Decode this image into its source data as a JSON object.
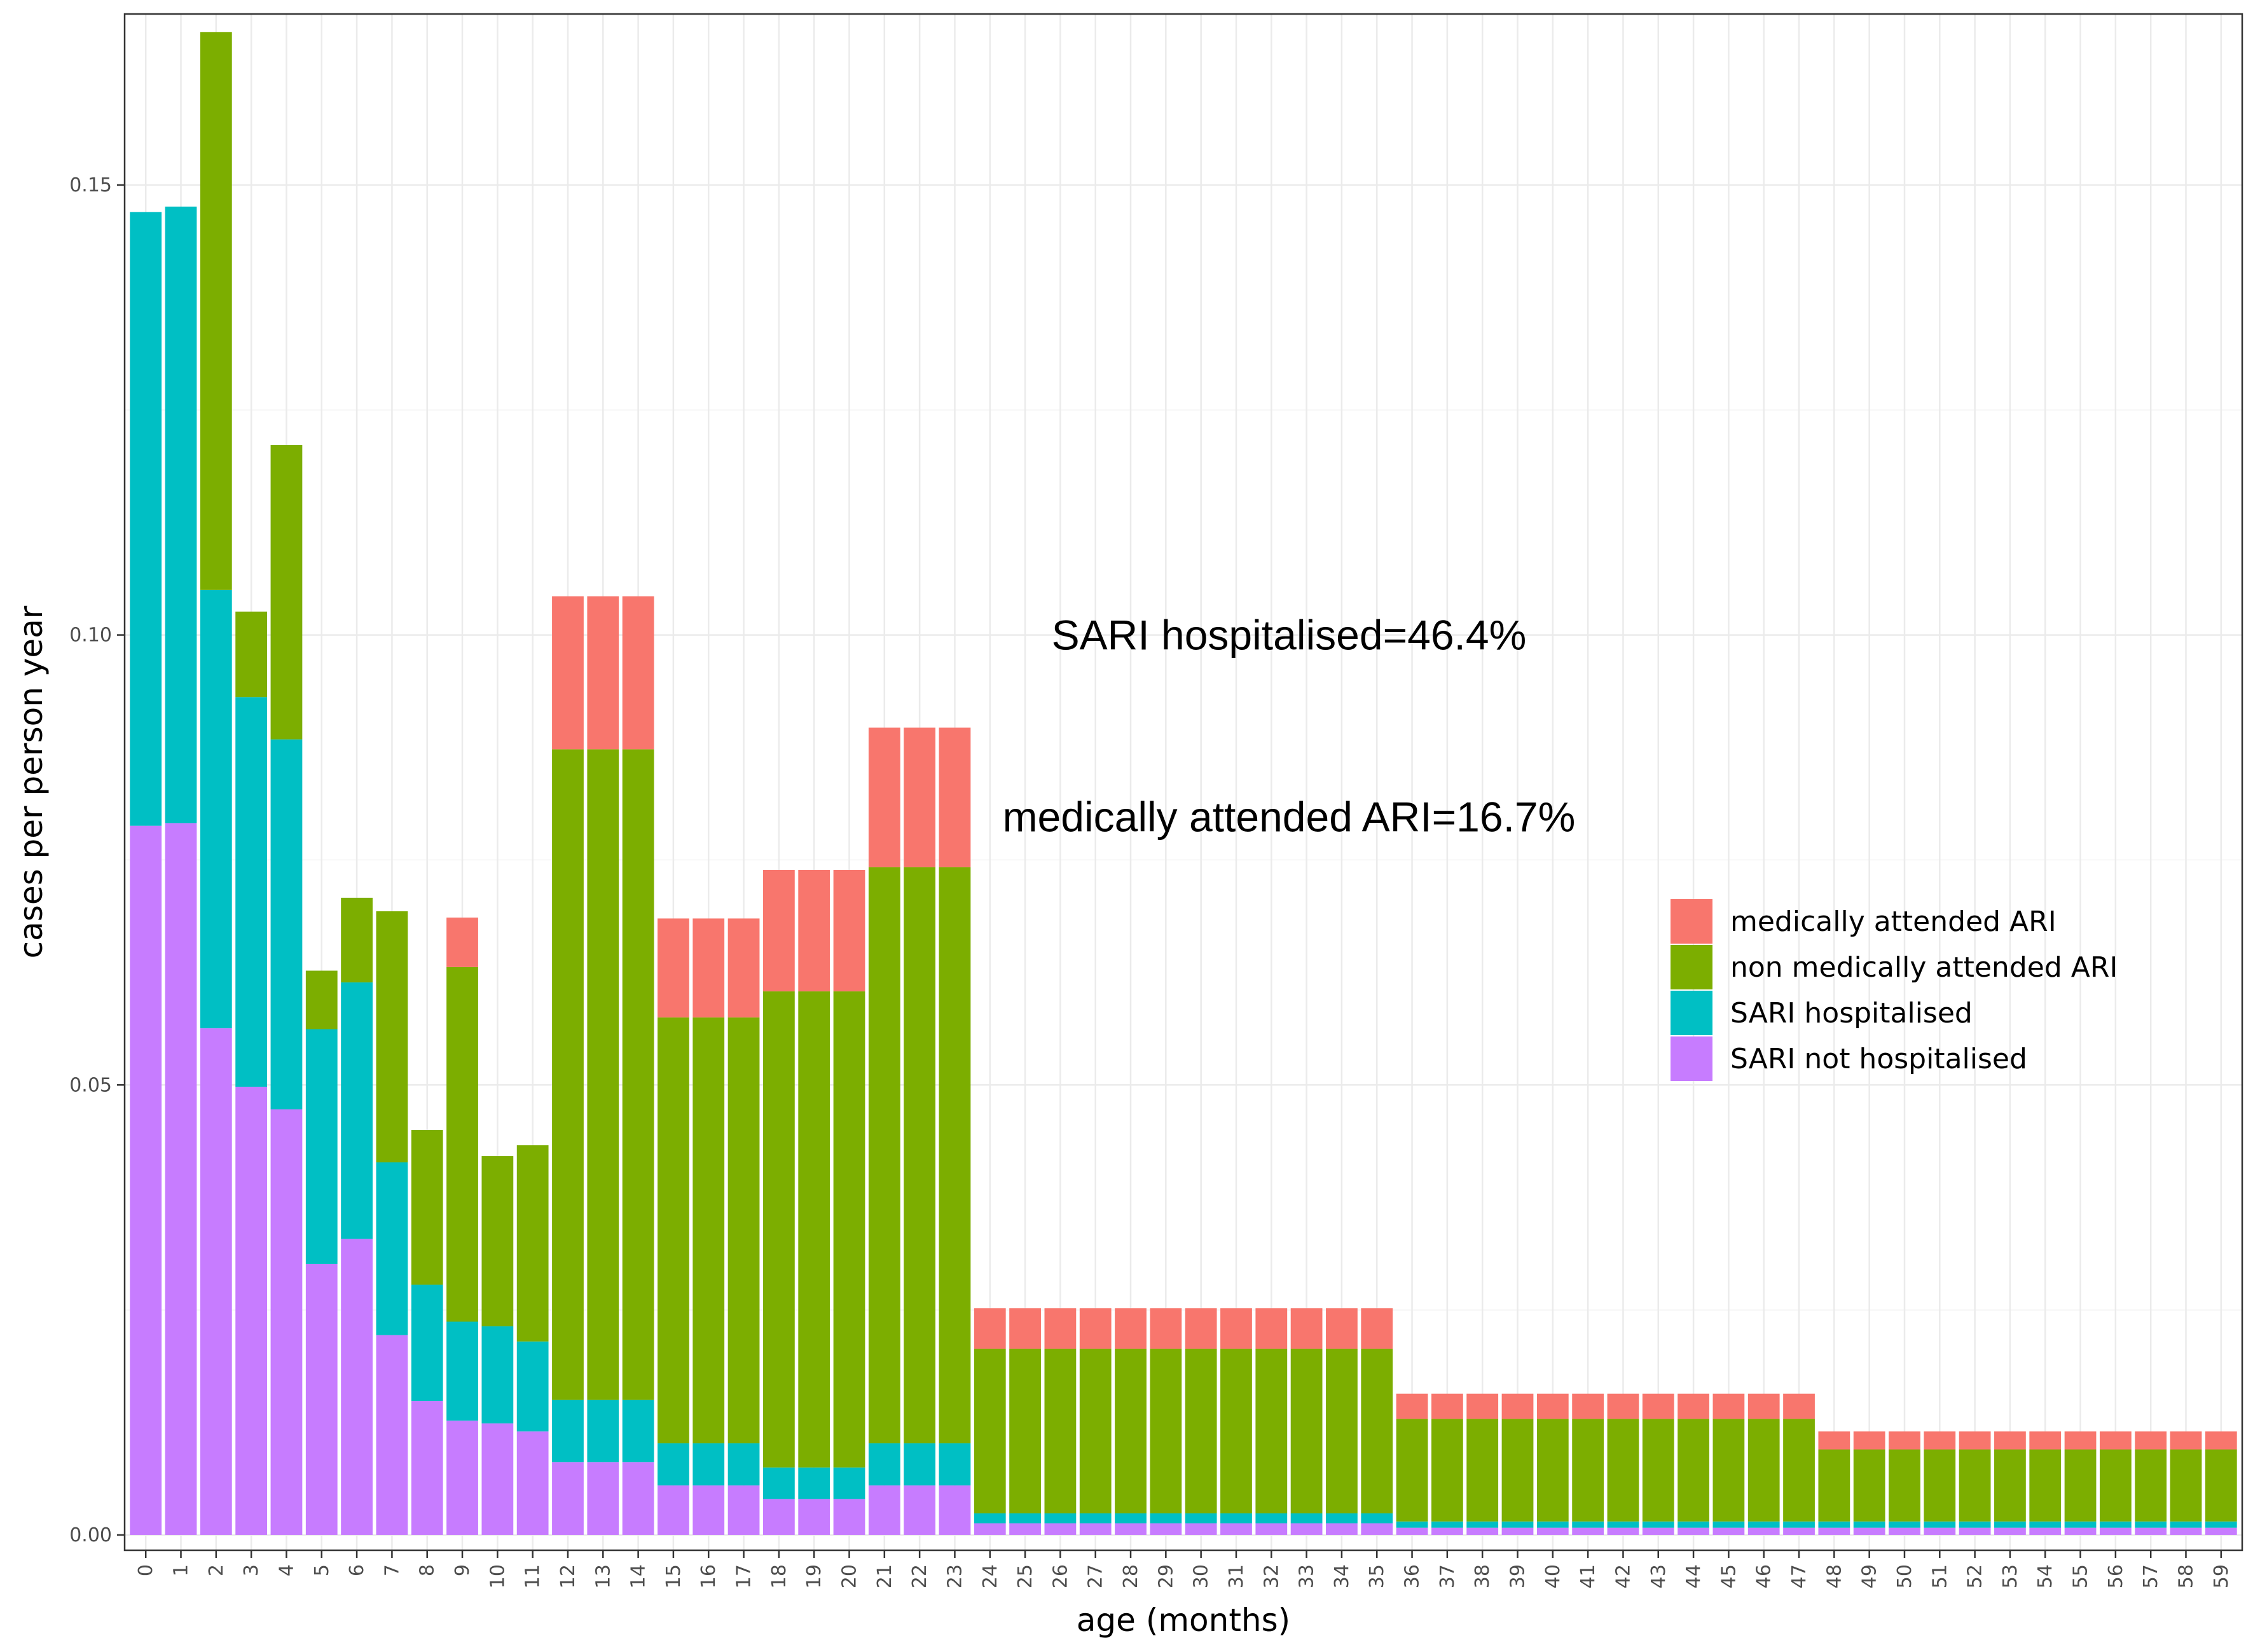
{
  "chart_data": {
    "type": "bar",
    "stacked": true,
    "xlabel": "age (months)",
    "ylabel": "cases per person year",
    "ylim": [
      -0.0017,
      0.169
    ],
    "yticks": [
      0.0,
      0.05,
      0.1,
      0.15
    ],
    "ytick_labels": [
      "0.00",
      "0.05",
      "0.10",
      "0.15"
    ],
    "grid": true,
    "legend_position": "right",
    "categories": [
      "0",
      "1",
      "2",
      "3",
      "4",
      "5",
      "6",
      "7",
      "8",
      "9",
      "10",
      "11",
      "12",
      "13",
      "14",
      "15",
      "16",
      "17",
      "18",
      "19",
      "20",
      "21",
      "22",
      "23",
      "24",
      "25",
      "26",
      "27",
      "28",
      "29",
      "30",
      "31",
      "32",
      "33",
      "34",
      "35",
      "36",
      "37",
      "38",
      "39",
      "40",
      "41",
      "42",
      "43",
      "44",
      "45",
      "46",
      "47",
      "48",
      "49",
      "50",
      "51",
      "52",
      "53",
      "54",
      "55",
      "56",
      "57",
      "58",
      "59"
    ],
    "series": [
      {
        "name": "SARI not hospitalised",
        "color": "#C77CFF",
        "values": [
          0.0788,
          0.0791,
          0.0563,
          0.0498,
          0.0473,
          0.0301,
          0.0329,
          0.0222,
          0.0149,
          0.0127,
          0.0124,
          0.0115,
          0.0081,
          0.0081,
          0.0081,
          0.0055,
          0.0055,
          0.0055,
          0.004,
          0.004,
          0.004,
          0.0055,
          0.0055,
          0.0055,
          0.0013,
          0.0013,
          0.0013,
          0.0013,
          0.0013,
          0.0013,
          0.0013,
          0.0013,
          0.0013,
          0.0013,
          0.0013,
          0.0013,
          0.0008,
          0.0008,
          0.0008,
          0.0008,
          0.0008,
          0.0008,
          0.0008,
          0.0008,
          0.0008,
          0.0008,
          0.0008,
          0.0008,
          0.0008,
          0.0008,
          0.0008,
          0.0008,
          0.0008,
          0.0008,
          0.0008,
          0.0008,
          0.0008,
          0.0008,
          0.0008,
          0.0008
        ]
      },
      {
        "name": "SARI hospitalised",
        "color": "#00BFC4",
        "values": [
          0.0682,
          0.0685,
          0.0487,
          0.0433,
          0.0411,
          0.0261,
          0.0285,
          0.0192,
          0.0129,
          0.011,
          0.0108,
          0.01,
          0.0069,
          0.0069,
          0.0069,
          0.0047,
          0.0047,
          0.0047,
          0.0035,
          0.0035,
          0.0035,
          0.0047,
          0.0047,
          0.0047,
          0.0011,
          0.0011,
          0.0011,
          0.0011,
          0.0011,
          0.0011,
          0.0011,
          0.0011,
          0.0011,
          0.0011,
          0.0011,
          0.0011,
          0.0007,
          0.0007,
          0.0007,
          0.0007,
          0.0007,
          0.0007,
          0.0007,
          0.0007,
          0.0007,
          0.0007,
          0.0007,
          0.0007,
          0.0007,
          0.0007,
          0.0007,
          0.0007,
          0.0007,
          0.0007,
          0.0007,
          0.0007,
          0.0007,
          0.0007,
          0.0007,
          0.0007
        ]
      },
      {
        "name": "non medically attended ARI",
        "color": "#7CAE00",
        "values": [
          0,
          0,
          0.062,
          0.0095,
          0.0327,
          0.0065,
          0.0094,
          0.0279,
          0.0172,
          0.0394,
          0.0189,
          0.0218,
          0.0723,
          0.0723,
          0.0723,
          0.0473,
          0.0473,
          0.0473,
          0.0529,
          0.0529,
          0.0529,
          0.064,
          0.064,
          0.064,
          0.0183,
          0.0183,
          0.0183,
          0.0183,
          0.0183,
          0.0183,
          0.0183,
          0.0183,
          0.0183,
          0.0183,
          0.0183,
          0.0183,
          0.0114,
          0.0114,
          0.0114,
          0.0114,
          0.0114,
          0.0114,
          0.0114,
          0.0114,
          0.0114,
          0.0114,
          0.0114,
          0.0114,
          0.008,
          0.008,
          0.008,
          0.008,
          0.008,
          0.008,
          0.008,
          0.008,
          0.008,
          0.008,
          0.008,
          0.008
        ]
      },
      {
        "name": "medically attended ARI",
        "color": "#F8766D",
        "values": [
          0,
          0,
          0,
          0,
          0,
          0,
          0,
          0,
          0,
          0.0055,
          0,
          0,
          0.017,
          0.017,
          0.017,
          0.011,
          0.011,
          0.011,
          0.0135,
          0.0135,
          0.0135,
          0.0155,
          0.0155,
          0.0155,
          0.0045,
          0.0045,
          0.0045,
          0.0045,
          0.0045,
          0.0045,
          0.0045,
          0.0045,
          0.0045,
          0.0045,
          0.0045,
          0.0045,
          0.0028,
          0.0028,
          0.0028,
          0.0028,
          0.0028,
          0.0028,
          0.0028,
          0.0028,
          0.0028,
          0.0028,
          0.0028,
          0.0028,
          0.002,
          0.002,
          0.002,
          0.002,
          0.002,
          0.002,
          0.002,
          0.002,
          0.002,
          0.002,
          0.002,
          0.002
        ]
      }
    ],
    "legend_order": [
      "medically attended ARI",
      "non medically attended ARI",
      "SARI hospitalised",
      "SARI not hospitalised"
    ],
    "annotations": [
      {
        "text": "SARI hospitalised=46.4%",
        "x": 32.5,
        "y": 0.1
      }
    ],
    "annotations_2": [
      {
        "text": "medically attended ARI=16.7%",
        "x": 32.5,
        "y": 0.0798
      }
    ]
  }
}
